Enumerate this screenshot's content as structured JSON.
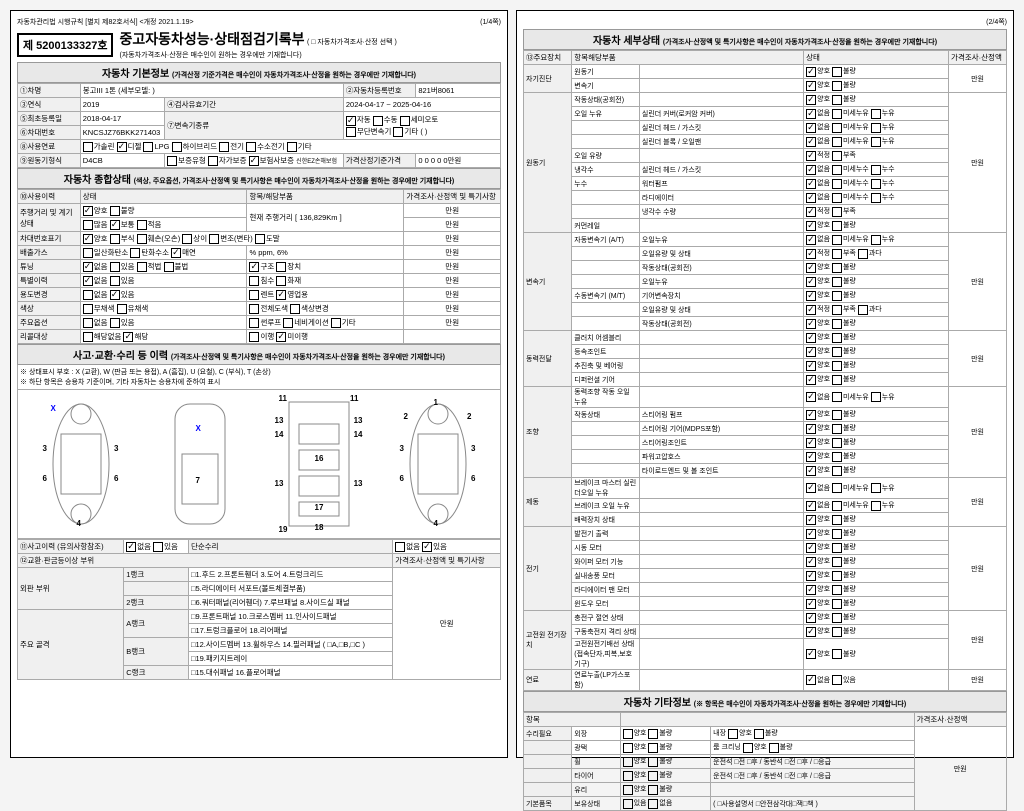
{
  "page1": {
    "header_left": "자동차관리법 시행규칙 [별지 제82호서식] <개정 2021.1.19>",
    "header_right": "(1/4쪽)",
    "cert_no": "제 5200133327호",
    "title": "중고자동차성능·상태점검기록부",
    "title_note": "( □ 자동차가격조사·산정 선택 )",
    "sub": "(자동차가격조사·산정은 매수인이 원하는 경우에만 기재합니다)",
    "sec1": {
      "title": "자동차 기본정보",
      "note": "(가격산정 기준가격은 매수인이 자동차가격조사·산정을 원하는 경우에만 기재합니다)"
    },
    "r1_1": "①차명",
    "r1_1v": "봉고III 1톤 (세부모델: )",
    "r1_2": "②자동차등록번호",
    "r1_2v": "821버8061",
    "r2_1": "③연식",
    "r2_1v": "2019",
    "r2_2": "④검사유효기간",
    "r2_2v": "2024-04-17 ~ 2025-04-16",
    "r3_1": "⑤최초등록일",
    "r3_1v": "2018-04-17",
    "r3_2": "⑦변속기종류",
    "r4_1": "⑥차대번호",
    "r4_1v": "KNCSJZ76BKK271403",
    "r5_1": "⑧사용연료",
    "r6_1": "⑨원동기형식",
    "r6_1v": "D4CB",
    "trans": [
      "자동",
      "수동",
      "세미오토",
      "무단변속기",
      "기타 ( )"
    ],
    "fuel": [
      "가솔린",
      "디젤",
      "LPG",
      "하이브리드",
      "전기",
      "수소전기",
      "기타"
    ],
    "warranty": [
      "보증유형",
      "자가보증",
      "보험사보증"
    ],
    "price_std": "가격산정기준가격",
    "price_v": "0 0 0 0 0만원",
    "sec2": {
      "title": "자동차 종합상태",
      "note": "(색상, 주요옵션, 가격조사·산정액 및 특기사항은 매수인이 자동차가격조사·산정을 원하는 경우에만 기재합니다)"
    },
    "col_h": [
      "⑩사용이력",
      "상태",
      "항목/해당부품",
      "가격조사·산정액 및 특기사항"
    ],
    "rows": [
      {
        "l": "주행거리 및 계기상태",
        "c": [
          "양호",
          "불량"
        ],
        "r": "현재 주행거리 [ 136,829Km ]",
        "u": "만원"
      },
      {
        "l": "",
        "c": [
          "많음",
          "보통",
          "적음"
        ],
        "r": "",
        "u": "만원"
      },
      {
        "l": "차대번호표기",
        "c": [
          "양호",
          "부식",
          "훼손(오손)",
          "상이",
          "변조(변타)",
          "도말"
        ],
        "u": "만원"
      },
      {
        "l": "배출가스",
        "c": [
          "일산화탄소",
          "탄화수소",
          "매연"
        ],
        "r": "%      ppm,      6%",
        "u": "만원"
      },
      {
        "l": "튜닝",
        "c": [
          "없음",
          "있음",
          "적법",
          "불법",
          "구조",
          "장치"
        ],
        "u": "만원"
      },
      {
        "l": "특별이력",
        "c": [
          "없음",
          "있음",
          "침수",
          "화재"
        ],
        "u": "만원"
      },
      {
        "l": "용도변경",
        "c": [
          "없음",
          "있음",
          "렌트",
          "영업용"
        ],
        "u": "만원"
      },
      {
        "l": "색상",
        "c": [
          "무채색",
          "유채색",
          "전체도색",
          "색상변경"
        ],
        "u": "만원"
      },
      {
        "l": "주요옵션",
        "c": [
          "없음",
          "있음",
          "썬루프",
          "네비게이션",
          "기타"
        ],
        "u": "만원"
      },
      {
        "l": "리콜대상",
        "c": [
          "해당없음",
          "해당",
          "이행",
          "미이행"
        ],
        "u": ""
      }
    ],
    "sec3": {
      "title": "사고·교환·수리 등 이력",
      "note": "(가격조사·산정액 및 특기사항은 매수인이 자동차가격조사·산정을 원하는 경우에만 기재합니다)"
    },
    "legend1": "※ 상태표시 부호 : X (교환), W (판금 또는 용접), A (흠집), U (요철), C (부식), T (손상)",
    "legend2": "※ 하단 항목은 승용차 기준이며, 기타 자동차는 승용차에 준하여 표시",
    "acc_row": {
      "l": "⑪사고이력 (유의사항참조)",
      "c1": [
        "없음",
        "있음"
      ],
      "m": "단순수리",
      "c2": [
        "없음",
        "있음"
      ]
    },
    "part_hdr": "⑫교환·판금등이상 부위",
    "part_r": "가격조사·산정액 및 특기사항",
    "p_rows": [
      {
        "g": "외판 부위",
        "rk": "1랭크",
        "it": "1.후드  2.프론트휀더  3.도어  4.트렁크리드"
      },
      {
        "g": "",
        "rk": "",
        "it": "5.라디에이터 서포트(볼트체결부품)"
      },
      {
        "g": "",
        "rk": "2랭크",
        "it": "6.쿼터패널(리어휀더)  7.루브패널  8.사이드실 패널"
      },
      {
        "g": "주요 골격",
        "rk": "A랭크",
        "it": "9.프론트패널  10.크로스멤버  11.인사이드패널"
      },
      {
        "g": "",
        "rk": "",
        "it": "17.트렁크플로어  18.리어패널"
      },
      {
        "g": "",
        "rk": "B랭크",
        "it": "12.사이드멤버  13.휠하우스  14.필러패널 ( □A,□B,□C )"
      },
      {
        "g": "",
        "rk": "",
        "it": "19.패키지트레이"
      },
      {
        "g": "",
        "rk": "C랭크",
        "it": "15.대쉬패널  16.플로어패널"
      }
    ],
    "unit": "만원"
  },
  "page2": {
    "header_right": "(2/4쪽)",
    "sec_title": "자동차 세부상태",
    "sec_note": "(가격조사·산정액 및 특기사항은 매수인이 자동차가격조사·산정을 원하는 경우에만 기재합니다)",
    "cols": [
      "⑬주요장치",
      "항목해당부품",
      "상태",
      "가격조사·산정액"
    ],
    "groups": [
      {
        "g": "자기진단",
        "items": [
          [
            "원동기",
            "",
            "양호",
            "불량"
          ],
          [
            "변속기",
            "",
            "양호",
            "불량"
          ]
        ],
        "u": "만원"
      },
      {
        "g": "원동기",
        "items": [
          [
            "작동상태(공회전)",
            "",
            "양호",
            "불량"
          ],
          [
            "오일 누유",
            "실린더 커버(로커암 커버)",
            "없음",
            "미세누유",
            "누유"
          ],
          [
            "",
            "실린더 헤드 / 가스킷",
            "없음",
            "미세누유",
            "누유"
          ],
          [
            "",
            "실린더 블록 / 오일팬",
            "없음",
            "미세누유",
            "누유"
          ],
          [
            "오일 유량",
            "",
            "적정",
            "부족"
          ],
          [
            "냉각수",
            "실린더 헤드 / 가스킷",
            "없음",
            "미세누수",
            "누수"
          ],
          [
            "누수",
            "워터펌프",
            "없음",
            "미세누수",
            "누수"
          ],
          [
            "",
            "라디에이터",
            "없음",
            "미세누수",
            "누수"
          ],
          [
            "",
            "냉각수 수량",
            "적정",
            "부족"
          ],
          [
            "커먼레일",
            "",
            "양호",
            "불량"
          ]
        ],
        "u": "만원"
      },
      {
        "g": "변속기",
        "items": [
          [
            "자동변속기 (A/T)",
            "오일누유",
            "없음",
            "미세누유",
            "누유"
          ],
          [
            "",
            "오일유량 및 상태",
            "적정",
            "부족",
            "과다"
          ],
          [
            "",
            "작동상태(공회전)",
            "양호",
            "불량"
          ],
          [
            "",
            "오일누유",
            "양호",
            "불량"
          ],
          [
            "수동변속기 (M/T)",
            "기어변속장치",
            "양호",
            "불량"
          ],
          [
            "",
            "오일유량 및 상태",
            "적정",
            "부족",
            "과다"
          ],
          [
            "",
            "작동상태(공회전)",
            "양호",
            "불량"
          ]
        ],
        "u": "만원"
      },
      {
        "g": "동력전달",
        "items": [
          [
            "클러치 어셈블리",
            "",
            "양호",
            "불량"
          ],
          [
            "등속조인트",
            "",
            "양호",
            "불량"
          ],
          [
            "추진축 및 베어링",
            "",
            "양호",
            "불량"
          ],
          [
            "디퍼런셜 기어",
            "",
            "양호",
            "불량"
          ]
        ],
        "u": "만원"
      },
      {
        "g": "조향",
        "items": [
          [
            "동력조향 작동 오일 누유",
            "",
            "없음",
            "미세누유",
            "누유"
          ],
          [
            "작동상태",
            "스티어링 펌프",
            "양호",
            "불량"
          ],
          [
            "",
            "스티어링 기어(MDPS포함)",
            "양호",
            "불량"
          ],
          [
            "",
            "스티어링조인트",
            "양호",
            "불량"
          ],
          [
            "",
            "파워고압호스",
            "양호",
            "불량"
          ],
          [
            "",
            "타이로드엔드 및 볼 조인트",
            "양호",
            "불량"
          ]
        ],
        "u": "만원"
      },
      {
        "g": "제동",
        "items": [
          [
            "브레이크 마스터 실린더오일 누유",
            "",
            "없음",
            "미세누유",
            "누유"
          ],
          [
            "브레이크 오일 누유",
            "",
            "없음",
            "미세누유",
            "누유"
          ],
          [
            "배력장치 상태",
            "",
            "양호",
            "불량"
          ]
        ],
        "u": "만원"
      },
      {
        "g": "전기",
        "items": [
          [
            "발전기 출력",
            "",
            "양호",
            "불량"
          ],
          [
            "시동 모터",
            "",
            "양호",
            "불량"
          ],
          [
            "와이퍼 모터 기능",
            "",
            "양호",
            "불량"
          ],
          [
            "실내송풍 모터",
            "",
            "양호",
            "불량"
          ],
          [
            "라디에이터 팬 모터",
            "",
            "양호",
            "불량"
          ],
          [
            "윈도우 모터",
            "",
            "양호",
            "불량"
          ]
        ],
        "u": "만원"
      },
      {
        "g": "고전원 전기장치",
        "items": [
          [
            "충전구 절연 상태",
            "",
            "양호",
            "불량"
          ],
          [
            "구동축전지 격리 상태",
            "",
            "양호",
            "불량"
          ],
          [
            "고전원전기배선 상태(접속단자,피복,보호기구)",
            "",
            "양호",
            "불량"
          ]
        ],
        "u": "만원"
      },
      {
        "g": "연료",
        "items": [
          [
            "연료누출(LP가스포함)",
            "",
            "없음",
            "있음"
          ]
        ],
        "u": "만원"
      }
    ],
    "sec2_title": "자동차 기타정보",
    "sec2_note": "(※ 항목은 매수인이 자동차가격조사·산정을 원하는 경우에만 기재합니다)",
    "misc_cols": [
      "항목",
      "",
      "",
      "",
      "가격조사·산정액"
    ],
    "misc": [
      [
        "수리필요",
        "외장",
        "양호",
        "불량",
        "내장",
        "양호",
        "불량"
      ],
      [
        "",
        "광택",
        "양호",
        "불량",
        "룸 크리닝",
        "양호",
        "불량"
      ],
      [
        "",
        "휠",
        "양호",
        "불량",
        "운전석 □전 □후 / 동반석 □전 □후 / □응급"
      ],
      [
        "",
        "타이어",
        "양호",
        "불량",
        "운전석 □전 □후 / 동반석 □전 □후 / □응급"
      ],
      [
        "",
        "유리",
        "양호",
        "불량",
        ""
      ],
      [
        "기본품목",
        "보유상태",
        "있음",
        "없음",
        "( □사용설명서 □안전삼각대□잭□책 )"
      ]
    ],
    "unit": "만원"
  },
  "colors": {
    "border": "#000",
    "grid": "#aaa",
    "hdr_bg": "#e8e8e8"
  }
}
